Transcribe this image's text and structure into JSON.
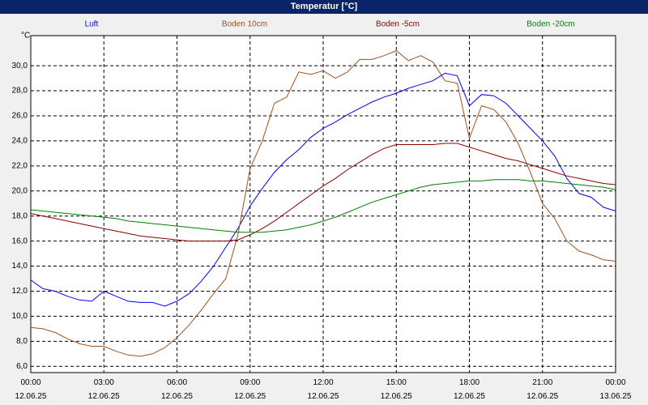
{
  "chart_data": {
    "type": "line",
    "title": "Temperatur [°C]",
    "y_label": "°C",
    "x": [
      0,
      0.5,
      1,
      1.5,
      2,
      2.5,
      3,
      3.5,
      4,
      4.5,
      5,
      5.5,
      6,
      6.5,
      7,
      7.5,
      8,
      8.5,
      9,
      9.5,
      10,
      10.5,
      11,
      11.5,
      12,
      12.5,
      13,
      13.5,
      14,
      14.5,
      15,
      15.5,
      16,
      16.5,
      17,
      17.5,
      18,
      18.5,
      19,
      19.5,
      20,
      20.5,
      21,
      21.5,
      22,
      22.5,
      23,
      23.5,
      24
    ],
    "xlim": [
      0,
      24
    ],
    "xticks": [
      {
        "value": 0,
        "label": "00:00\n12.06.25"
      },
      {
        "value": 3,
        "label": "03:00\n12.06.25"
      },
      {
        "value": 6,
        "label": "06:00\n12.06.25"
      },
      {
        "value": 9,
        "label": "09:00\n12.06.25"
      },
      {
        "value": 12,
        "label": "12:00\n12.06.25"
      },
      {
        "value": 15,
        "label": "15:00\n12.06.25"
      },
      {
        "value": 18,
        "label": "18:00\n12.06.25"
      },
      {
        "value": 21,
        "label": "21:00\n12.06.25"
      },
      {
        "value": 24,
        "label": "00:00\n13.06.25"
      }
    ],
    "ylim": [
      5.5,
      32.4
    ],
    "yticks": [
      {
        "value": 6,
        "label": "6,0"
      },
      {
        "value": 8,
        "label": "8,0"
      },
      {
        "value": 10,
        "label": "10,0"
      },
      {
        "value": 12,
        "label": "12,0"
      },
      {
        "value": 14,
        "label": "14,0"
      },
      {
        "value": 16,
        "label": "16,0"
      },
      {
        "value": 18,
        "label": "18,0"
      },
      {
        "value": 20,
        "label": "20,0"
      },
      {
        "value": 22,
        "label": "22,0"
      },
      {
        "value": 24,
        "label": "24,0"
      },
      {
        "value": 26,
        "label": "26,0"
      },
      {
        "value": 28,
        "label": "28,0"
      },
      {
        "value": 30,
        "label": "30,0"
      }
    ],
    "grid": true,
    "series": [
      {
        "name": "Luft",
        "color": "#0000ff",
        "values": [
          12.9,
          12.2,
          12.0,
          11.6,
          11.3,
          11.2,
          12.0,
          11.6,
          11.2,
          11.1,
          11.1,
          10.8,
          11.2,
          11.8,
          12.8,
          14.0,
          15.5,
          17.0,
          18.8,
          20.2,
          21.5,
          22.5,
          23.3,
          24.3,
          25.0,
          25.5,
          26.1,
          26.6,
          27.1,
          27.5,
          27.8,
          28.2,
          28.5,
          28.8,
          29.4,
          29.2,
          26.8,
          27.7,
          27.6,
          27.0,
          26.0,
          25.0,
          24.0,
          22.8,
          21.0,
          19.8,
          19.5,
          18.7,
          18.4
        ]
      },
      {
        "name": "Boden 10cm",
        "color": "#a0501e",
        "values": [
          9.1,
          9.0,
          8.7,
          8.2,
          7.8,
          7.6,
          7.6,
          7.2,
          6.9,
          6.8,
          7.0,
          7.5,
          8.3,
          9.3,
          10.5,
          11.8,
          13.0,
          16.5,
          21.8,
          24.0,
          27.0,
          27.5,
          29.5,
          29.3,
          29.6,
          29.0,
          29.5,
          30.5,
          30.5,
          30.8,
          31.2,
          30.4,
          30.8,
          30.3,
          28.8,
          28.6,
          24.2,
          26.8,
          26.5,
          25.5,
          23.8,
          21.5,
          19.0,
          17.8,
          16.0,
          15.2,
          14.9,
          14.5,
          14.4
        ]
      },
      {
        "name": "Boden -5cm",
        "color": "#8b0000",
        "values": [
          18.2,
          18.0,
          17.8,
          17.6,
          17.4,
          17.2,
          17.0,
          16.8,
          16.6,
          16.4,
          16.3,
          16.2,
          16.1,
          16.0,
          16.0,
          16.0,
          16.0,
          16.1,
          16.5,
          17.0,
          17.6,
          18.3,
          19.0,
          19.7,
          20.4,
          21.0,
          21.7,
          22.3,
          22.9,
          23.4,
          23.7,
          23.7,
          23.7,
          23.7,
          23.8,
          23.8,
          23.5,
          23.2,
          22.9,
          22.6,
          22.4,
          22.1,
          21.8,
          21.5,
          21.2,
          21.0,
          20.8,
          20.6,
          20.5
        ]
      },
      {
        "name": "Boden -20cm",
        "color": "#008000",
        "values": [
          18.5,
          18.4,
          18.3,
          18.2,
          18.1,
          18.0,
          17.9,
          17.8,
          17.6,
          17.5,
          17.4,
          17.3,
          17.2,
          17.1,
          17.0,
          16.9,
          16.8,
          16.7,
          16.7,
          16.7,
          16.8,
          16.9,
          17.1,
          17.3,
          17.6,
          17.9,
          18.3,
          18.7,
          19.1,
          19.4,
          19.7,
          20.0,
          20.3,
          20.5,
          20.6,
          20.7,
          20.8,
          20.8,
          20.9,
          20.9,
          20.9,
          20.8,
          20.8,
          20.7,
          20.6,
          20.5,
          20.4,
          20.3,
          20.1
        ]
      }
    ]
  }
}
